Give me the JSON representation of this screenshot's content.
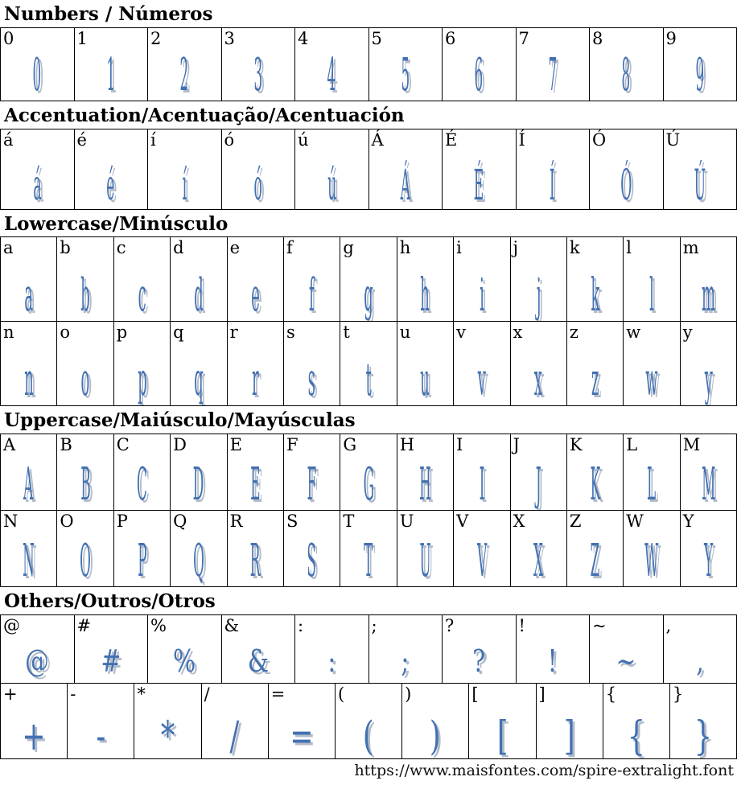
{
  "colors": {
    "glyph": "#4371b1",
    "glyph_shadow": "#b4bcca",
    "border": "#000000",
    "background": "#ffffff"
  },
  "sections": [
    {
      "id": "numbers",
      "title": "Numbers / Números",
      "rows": [
        [
          "0",
          "1",
          "2",
          "3",
          "4",
          "5",
          "6",
          "7",
          "8",
          "9"
        ]
      ]
    },
    {
      "id": "accentuation",
      "title": "Accentuation/Acentuação/Acentuación",
      "rows": [
        [
          "á",
          "é",
          "í",
          "ó",
          "ú",
          "Á",
          "É",
          "Í",
          "Ó",
          "Ú"
        ]
      ]
    },
    {
      "id": "lowercase",
      "title": "Lowercase/Minúsculo",
      "rows": [
        [
          "a",
          "b",
          "c",
          "d",
          "e",
          "f",
          "g",
          "h",
          "i",
          "j",
          "k",
          "l",
          "m"
        ],
        [
          "n",
          "o",
          "p",
          "q",
          "r",
          "s",
          "t",
          "u",
          "v",
          "x",
          "z",
          "w",
          "y"
        ]
      ]
    },
    {
      "id": "uppercase",
      "title": "Uppercase/Maiúsculo/Mayúsculas",
      "rows": [
        [
          "A",
          "B",
          "C",
          "D",
          "E",
          "F",
          "G",
          "H",
          "I",
          "J",
          "K",
          "L",
          "M"
        ],
        [
          "N",
          "O",
          "P",
          "Q",
          "R",
          "S",
          "T",
          "U",
          "V",
          "X",
          "Z",
          "W",
          "Y"
        ]
      ]
    },
    {
      "id": "others",
      "title": "Others/Outros/Otros",
      "rows": [
        [
          "@",
          "#",
          "%",
          "&",
          ":",
          ";",
          "?",
          "!",
          "~",
          ","
        ],
        [
          "+",
          "-",
          "*",
          "/",
          "=",
          "(",
          ")",
          "[",
          "]",
          "{",
          "}"
        ]
      ]
    }
  ],
  "footer": {
    "url": "https://www.maisfontes.com/spire-extralight.font"
  }
}
